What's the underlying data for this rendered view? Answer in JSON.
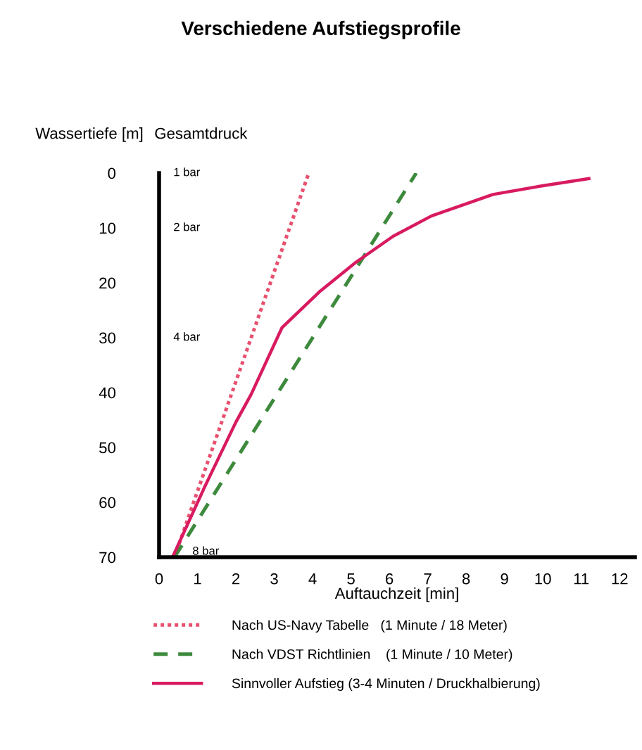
{
  "chart_data": {
    "type": "line",
    "title": "Verschiedene Aufstiegsprofile",
    "xlabel": "Auftauchzeit [min]",
    "ylabel": "Wassertiefe [m]",
    "xlim": [
      0,
      12.4
    ],
    "xticks": [
      0,
      1,
      2,
      3,
      4,
      5,
      6,
      7,
      8,
      9,
      10,
      11,
      12
    ],
    "ylim": [
      70,
      0
    ],
    "yticks": [
      0,
      10,
      20,
      30,
      40,
      50,
      60,
      70
    ],
    "grid": false,
    "legend": "bottom",
    "marker": "none",
    "annotations": [
      "Gesamtdruck",
      "1 bar",
      "2 bar",
      "4 bar",
      "8 bar"
    ],
    "series": [
      {
        "name": "Nach US-Navy Tabelle   (1 Minute / 18 Meter)",
        "color": "#e8506e",
        "line_style": "dotted",
        "x": [
          0.4,
          3.9
        ],
        "values": [
          70,
          0
        ]
      },
      {
        "name": "Nach VDST Richtlinien    (1 Minute / 10 Meter)",
        "color": "#3d8a3d",
        "line_style": "dashed",
        "x": [
          0.4,
          6.7
        ],
        "values": [
          70,
          0
        ]
      },
      {
        "name": "Sinnvoller Aufstieg (3-4 Minuten / Druckhalbierung)",
        "color": "#d81b60",
        "line_style": "solid",
        "x": [
          0.35,
          1.2,
          2.0,
          2.4,
          3.2,
          4.2,
          5.1,
          6.1,
          7.1,
          8.7,
          10.0,
          11.2
        ],
        "values": [
          70,
          57,
          45.4,
          40.3,
          28.2,
          21.5,
          16.4,
          11.5,
          7.8,
          3.9,
          2.3,
          1.0
        ]
      }
    ]
  }
}
